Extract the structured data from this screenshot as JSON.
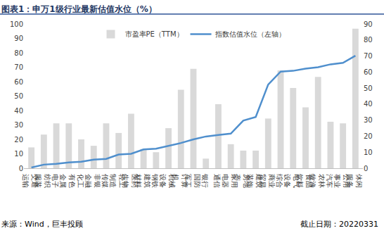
{
  "chart_data": {
    "type": "bar",
    "title": "图表1：申万1级行业最新估值水位（%）",
    "annotations": [
      "来源：Wind，巨丰投顾",
      "截止日期：20220331"
    ],
    "categories": [
      "交通运输",
      "纺织服装",
      "电子",
      "有色金属",
      "化工",
      "非银金融",
      "传媒",
      "轻工制造",
      "医药生物",
      "建筑材料",
      "钢铁",
      "机械设备",
      "计算机",
      "国防军工",
      "银行",
      "通信",
      "家用电器",
      "房地产",
      "建筑装饰",
      "商业贸易",
      "综合",
      "电气设备",
      "食品饮料",
      "农林牧渔",
      "汽车",
      "公用事业",
      "休闲服务"
    ],
    "series": [
      {
        "name": "市盈率PE（TTM）",
        "type": "bar",
        "axis": "y2",
        "color": "#d9d9d9",
        "values": [
          13,
          21,
          28,
          28,
          18,
          14,
          28,
          22,
          34,
          12,
          10,
          25,
          49,
          62,
          6,
          40,
          15,
          11,
          11,
          31,
          61,
          50,
          38,
          57,
          29,
          28,
          87
        ]
      },
      {
        "name": "指数估值水位（左轴）",
        "type": "line",
        "color": "#4f8fcd",
        "values": [
          0.5,
          2.5,
          3,
          4,
          4.5,
          6,
          6.5,
          9.5,
          10,
          13,
          13.5,
          15.5,
          17.5,
          20,
          22,
          23,
          24,
          33,
          35.5,
          58,
          67,
          67.5,
          69,
          70,
          72,
          73,
          78
        ]
      }
    ],
    "ylim": [
      0,
      100
    ],
    "yticks": [
      0,
      10,
      20,
      30,
      40,
      50,
      60,
      70,
      80,
      90,
      100
    ],
    "y2lim": [
      0,
      90
    ],
    "y2ticks": [
      0,
      10,
      20,
      30,
      40,
      50,
      60,
      70,
      80,
      90
    ],
    "grid": false,
    "legend": "top"
  }
}
